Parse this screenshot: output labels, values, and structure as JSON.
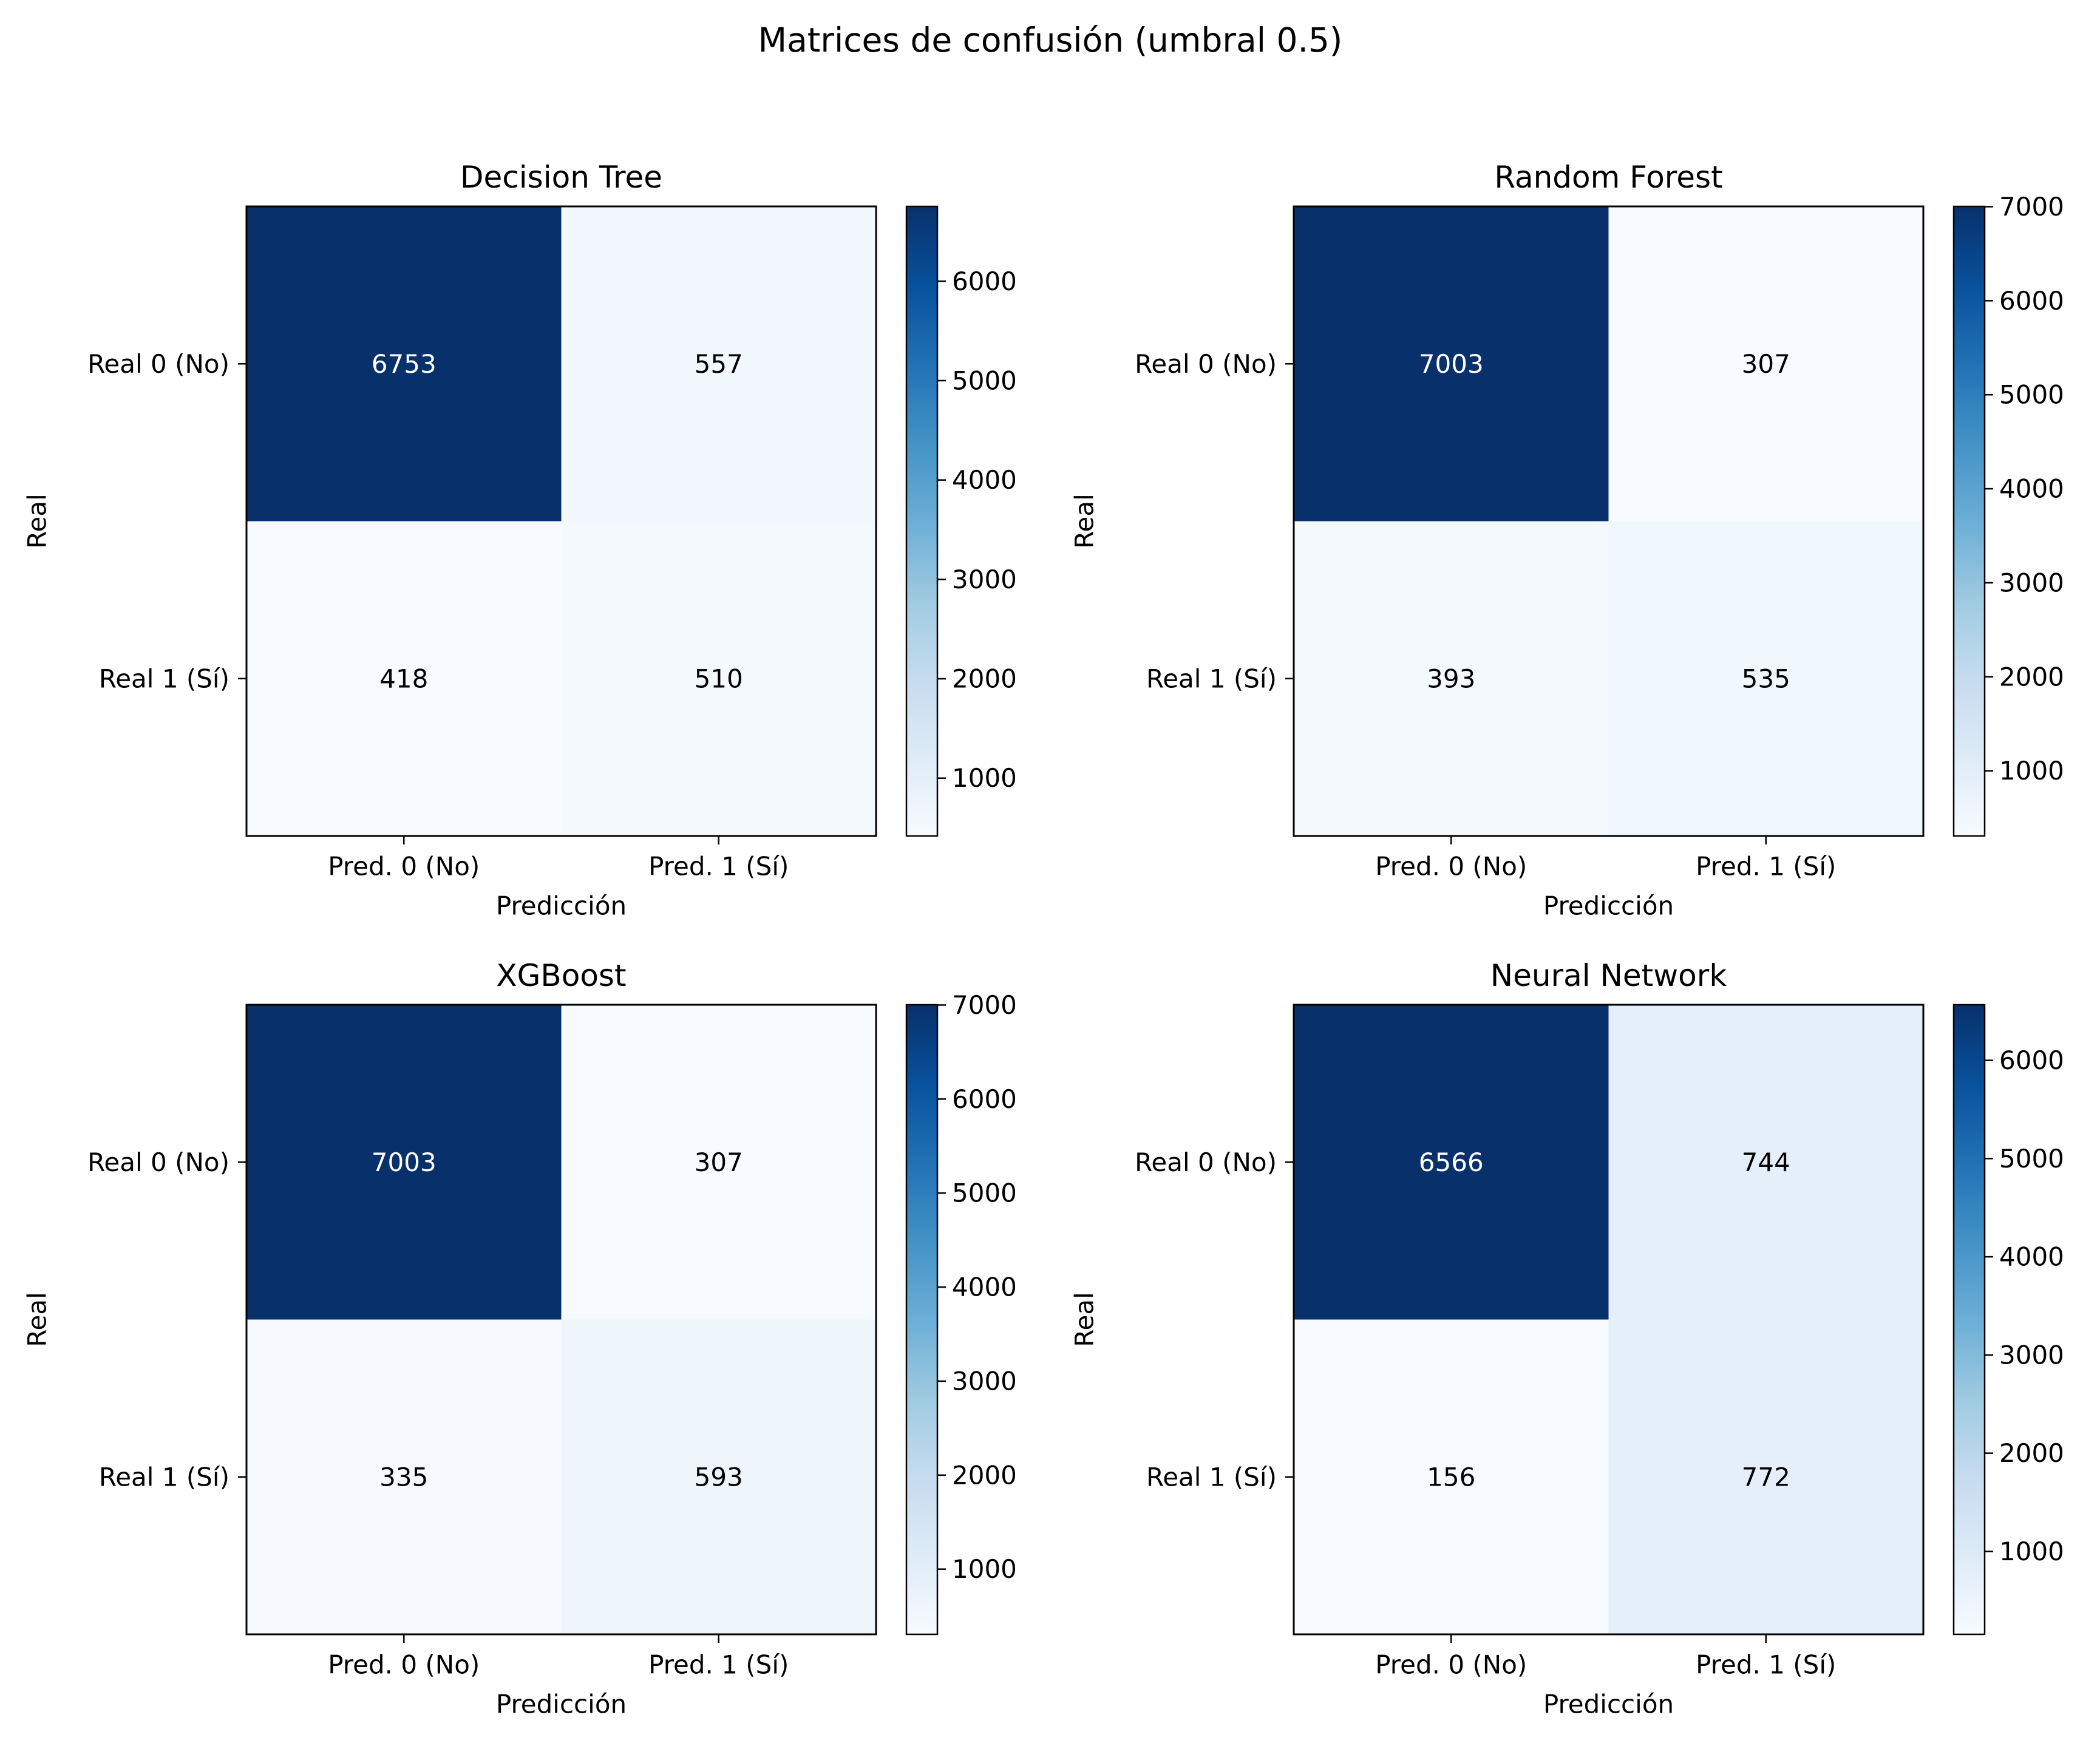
{
  "figure": {
    "suptitle": "Matrices de confusión (umbral 0.5)",
    "colormap": "Blues",
    "cmap_light": "#f7fbff",
    "cmap_dark": "#08306b"
  },
  "chart_data": [
    {
      "type": "heatmap",
      "title": "Decision Tree",
      "xlabel": "Predicción",
      "ylabel": "Real",
      "x_categories": [
        "Pred. 0 (No)",
        "Pred. 1 (Sí)"
      ],
      "y_categories": [
        "Real 0 (No)",
        "Real 1 (Sí)"
      ],
      "matrix": [
        [
          6753,
          557
        ],
        [
          418,
          510
        ]
      ],
      "colorbar": {
        "min": 418,
        "max": 6753,
        "ticks": [
          1000,
          2000,
          3000,
          4000,
          5000,
          6000
        ]
      }
    },
    {
      "type": "heatmap",
      "title": "Random Forest",
      "xlabel": "Predicción",
      "ylabel": "Real",
      "x_categories": [
        "Pred. 0 (No)",
        "Pred. 1 (Sí)"
      ],
      "y_categories": [
        "Real 0 (No)",
        "Real 1 (Sí)"
      ],
      "matrix": [
        [
          7003,
          307
        ],
        [
          393,
          535
        ]
      ],
      "colorbar": {
        "min": 307,
        "max": 7003,
        "ticks": [
          1000,
          2000,
          3000,
          4000,
          5000,
          6000,
          7000
        ]
      }
    },
    {
      "type": "heatmap",
      "title": "XGBoost",
      "xlabel": "Predicción",
      "ylabel": "Real",
      "x_categories": [
        "Pred. 0 (No)",
        "Pred. 1 (Sí)"
      ],
      "y_categories": [
        "Real 0 (No)",
        "Real 1 (Sí)"
      ],
      "matrix": [
        [
          7003,
          307
        ],
        [
          335,
          593
        ]
      ],
      "colorbar": {
        "min": 307,
        "max": 7003,
        "ticks": [
          1000,
          2000,
          3000,
          4000,
          5000,
          6000,
          7000
        ]
      }
    },
    {
      "type": "heatmap",
      "title": "Neural Network",
      "xlabel": "Predicción",
      "ylabel": "Real",
      "x_categories": [
        "Pred. 0 (No)",
        "Pred. 1 (Sí)"
      ],
      "y_categories": [
        "Real 0 (No)",
        "Real 1 (Sí)"
      ],
      "matrix": [
        [
          6566,
          744
        ],
        [
          156,
          772
        ]
      ],
      "colorbar": {
        "min": 156,
        "max": 6566,
        "ticks": [
          1000,
          2000,
          3000,
          4000,
          5000,
          6000
        ]
      }
    }
  ]
}
